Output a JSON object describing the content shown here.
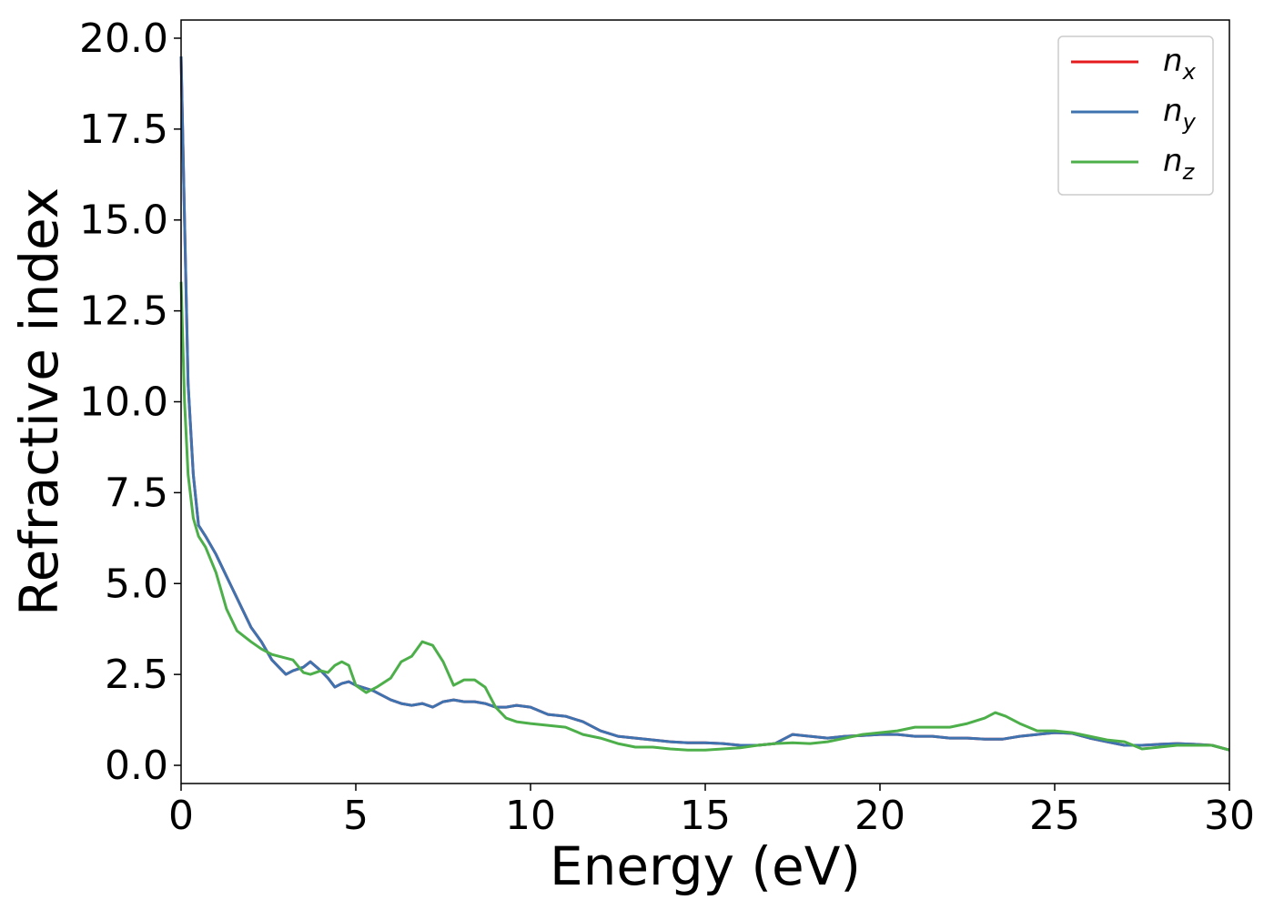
{
  "chart_data": {
    "type": "line",
    "title": "",
    "xlabel": "Energy (eV)",
    "ylabel": "Refractive index",
    "xlim": [
      0,
      30
    ],
    "ylim": [
      -0.5,
      20.5
    ],
    "xticks": [
      0,
      5,
      10,
      15,
      20,
      25,
      30
    ],
    "xtick_labels": [
      "0",
      "5",
      "10",
      "15",
      "20",
      "25",
      "30"
    ],
    "yticks": [
      0.0,
      2.5,
      5.0,
      7.5,
      10.0,
      12.5,
      15.0,
      17.5,
      20.0
    ],
    "ytick_labels": [
      "0.0",
      "2.5",
      "5.0",
      "7.5",
      "10.0",
      "12.5",
      "15.0",
      "17.5",
      "20.0"
    ],
    "grid": false,
    "legend_position": "top-right",
    "series": [
      {
        "name": "n_x",
        "label_base": "n",
        "label_sub": "x",
        "color": "#e41a1c",
        "x": [
          0.0,
          0.1,
          0.2,
          0.35,
          0.5,
          0.7,
          1.0,
          1.3,
          1.6,
          2.0,
          2.3,
          2.6,
          2.8,
          3.0,
          3.2,
          3.5,
          3.7,
          4.0,
          4.2,
          4.4,
          4.6,
          4.8,
          5.0,
          5.5,
          5.8,
          6.0,
          6.3,
          6.6,
          6.9,
          7.2,
          7.5,
          7.8,
          8.1,
          8.4,
          8.7,
          9.0,
          9.3,
          9.6,
          10.0,
          10.5,
          11.0,
          11.5,
          12.0,
          12.5,
          13.0,
          13.5,
          14.0,
          14.5,
          15.0,
          15.5,
          16.0,
          16.5,
          17.0,
          17.5,
          18.0,
          18.5,
          19.0,
          19.5,
          20.0,
          20.5,
          21.0,
          21.5,
          22.0,
          22.5,
          23.0,
          23.5,
          24.0,
          24.5,
          25.0,
          25.5,
          26.0,
          26.5,
          27.0,
          27.5,
          28.0,
          28.5,
          29.0,
          29.5,
          30.0
        ],
        "y": [
          19.5,
          15.0,
          10.5,
          8.0,
          6.6,
          6.3,
          5.8,
          5.2,
          4.6,
          3.8,
          3.4,
          2.9,
          2.7,
          2.5,
          2.6,
          2.7,
          2.85,
          2.6,
          2.4,
          2.15,
          2.25,
          2.3,
          2.2,
          2.05,
          1.9,
          1.8,
          1.7,
          1.65,
          1.7,
          1.6,
          1.75,
          1.8,
          1.75,
          1.75,
          1.7,
          1.6,
          1.6,
          1.65,
          1.6,
          1.4,
          1.35,
          1.2,
          0.95,
          0.8,
          0.75,
          0.7,
          0.65,
          0.62,
          0.62,
          0.6,
          0.55,
          0.55,
          0.6,
          0.85,
          0.8,
          0.75,
          0.8,
          0.82,
          0.85,
          0.85,
          0.8,
          0.8,
          0.75,
          0.75,
          0.72,
          0.72,
          0.8,
          0.85,
          0.9,
          0.88,
          0.75,
          0.65,
          0.55,
          0.55,
          0.58,
          0.6,
          0.58,
          0.55,
          0.42
        ]
      },
      {
        "name": "n_y",
        "label_base": "n",
        "label_sub": "y",
        "color": "#3f73b0",
        "x": [
          0.0,
          0.1,
          0.2,
          0.35,
          0.5,
          0.7,
          1.0,
          1.3,
          1.6,
          2.0,
          2.3,
          2.6,
          2.8,
          3.0,
          3.2,
          3.5,
          3.7,
          4.0,
          4.2,
          4.4,
          4.6,
          4.8,
          5.0,
          5.5,
          5.8,
          6.0,
          6.3,
          6.6,
          6.9,
          7.2,
          7.5,
          7.8,
          8.1,
          8.4,
          8.7,
          9.0,
          9.3,
          9.6,
          10.0,
          10.5,
          11.0,
          11.5,
          12.0,
          12.5,
          13.0,
          13.5,
          14.0,
          14.5,
          15.0,
          15.5,
          16.0,
          16.5,
          17.0,
          17.5,
          18.0,
          18.5,
          19.0,
          19.5,
          20.0,
          20.5,
          21.0,
          21.5,
          22.0,
          22.5,
          23.0,
          23.5,
          24.0,
          24.5,
          25.0,
          25.5,
          26.0,
          26.5,
          27.0,
          27.5,
          28.0,
          28.5,
          29.0,
          29.5,
          30.0
        ],
        "y": [
          19.5,
          15.0,
          10.5,
          8.0,
          6.6,
          6.3,
          5.8,
          5.2,
          4.6,
          3.8,
          3.4,
          2.9,
          2.7,
          2.5,
          2.6,
          2.7,
          2.85,
          2.6,
          2.4,
          2.15,
          2.25,
          2.3,
          2.2,
          2.05,
          1.9,
          1.8,
          1.7,
          1.65,
          1.7,
          1.6,
          1.75,
          1.8,
          1.75,
          1.75,
          1.7,
          1.6,
          1.6,
          1.65,
          1.6,
          1.4,
          1.35,
          1.2,
          0.95,
          0.8,
          0.75,
          0.7,
          0.65,
          0.62,
          0.62,
          0.6,
          0.55,
          0.55,
          0.6,
          0.85,
          0.8,
          0.75,
          0.8,
          0.82,
          0.85,
          0.85,
          0.8,
          0.8,
          0.75,
          0.75,
          0.72,
          0.72,
          0.8,
          0.85,
          0.9,
          0.88,
          0.75,
          0.65,
          0.55,
          0.55,
          0.58,
          0.6,
          0.58,
          0.55,
          0.42
        ]
      },
      {
        "name": "n_z",
        "label_base": "n",
        "label_sub": "z",
        "color": "#4daf4a",
        "x": [
          0.0,
          0.1,
          0.2,
          0.35,
          0.5,
          0.7,
          1.0,
          1.3,
          1.6,
          2.0,
          2.3,
          2.6,
          2.8,
          3.0,
          3.2,
          3.5,
          3.7,
          4.0,
          4.2,
          4.4,
          4.6,
          4.8,
          5.0,
          5.3,
          5.6,
          6.0,
          6.3,
          6.6,
          6.9,
          7.2,
          7.5,
          7.8,
          8.1,
          8.4,
          8.7,
          9.0,
          9.3,
          9.6,
          10.0,
          10.5,
          11.0,
          11.5,
          12.0,
          12.5,
          13.0,
          13.5,
          14.0,
          14.5,
          15.0,
          15.5,
          16.0,
          16.5,
          17.0,
          17.5,
          18.0,
          18.5,
          19.0,
          19.5,
          20.0,
          20.5,
          21.0,
          21.5,
          22.0,
          22.5,
          23.0,
          23.3,
          23.6,
          24.0,
          24.5,
          25.0,
          25.5,
          26.0,
          26.5,
          27.0,
          27.5,
          28.0,
          28.5,
          29.0,
          29.5,
          30.0
        ],
        "y": [
          13.3,
          10.0,
          8.0,
          6.8,
          6.3,
          6.0,
          5.3,
          4.3,
          3.7,
          3.4,
          3.2,
          3.05,
          3.0,
          2.95,
          2.9,
          2.55,
          2.5,
          2.6,
          2.55,
          2.75,
          2.85,
          2.75,
          2.2,
          2.0,
          2.15,
          2.4,
          2.85,
          3.0,
          3.4,
          3.3,
          2.85,
          2.2,
          2.35,
          2.35,
          2.15,
          1.6,
          1.3,
          1.2,
          1.15,
          1.1,
          1.05,
          0.85,
          0.75,
          0.6,
          0.5,
          0.5,
          0.45,
          0.42,
          0.42,
          0.45,
          0.48,
          0.55,
          0.6,
          0.62,
          0.6,
          0.65,
          0.75,
          0.85,
          0.9,
          0.95,
          1.05,
          1.05,
          1.05,
          1.15,
          1.3,
          1.45,
          1.35,
          1.15,
          0.95,
          0.95,
          0.9,
          0.8,
          0.7,
          0.65,
          0.45,
          0.5,
          0.55,
          0.55,
          0.55,
          0.42
        ]
      }
    ]
  }
}
